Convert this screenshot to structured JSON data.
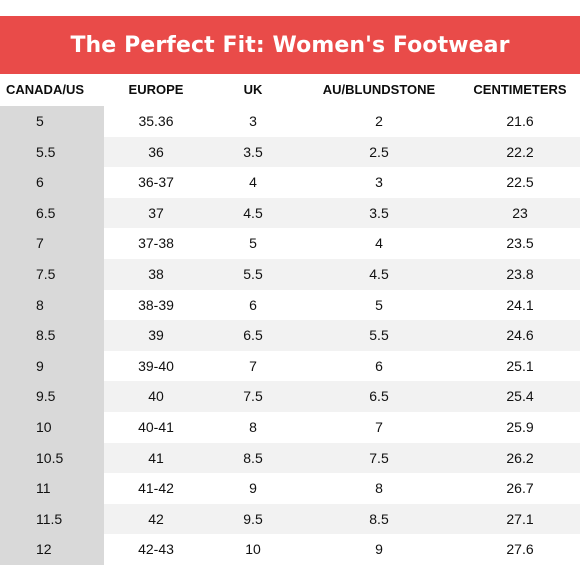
{
  "title": "The Perfect Fit: Women's Footwear",
  "colors": {
    "title_band": "#e94b49",
    "title_text": "#ffffff",
    "first_column_band": "#d9d9d9",
    "alt_row_shade": "#f2f2f2"
  },
  "table": {
    "headers": [
      "CANADA/US",
      "EUROPE",
      "UK",
      "AU/BLUNDSTONE",
      "CENTIMETERS"
    ],
    "rows": [
      [
        "5",
        "35.36",
        "3",
        "2",
        "21.6"
      ],
      [
        "5.5",
        "36",
        "3.5",
        "2.5",
        "22.2"
      ],
      [
        "6",
        "36-37",
        "4",
        "3",
        "22.5"
      ],
      [
        "6.5",
        "37",
        "4.5",
        "3.5",
        "23"
      ],
      [
        "7",
        "37-38",
        "5",
        "4",
        "23.5"
      ],
      [
        "7.5",
        "38",
        "5.5",
        "4.5",
        "23.8"
      ],
      [
        "8",
        "38-39",
        "6",
        "5",
        "24.1"
      ],
      [
        "8.5",
        "39",
        "6.5",
        "5.5",
        "24.6"
      ],
      [
        "9",
        "39-40",
        "7",
        "6",
        "25.1"
      ],
      [
        "9.5",
        "40",
        "7.5",
        "6.5",
        "25.4"
      ],
      [
        "10",
        "40-41",
        "8",
        "7",
        "25.9"
      ],
      [
        "10.5",
        "41",
        "8.5",
        "7.5",
        "26.2"
      ],
      [
        "11",
        "41-42",
        "9",
        "8",
        "26.7"
      ],
      [
        "11.5",
        "42",
        "9.5",
        "8.5",
        "27.1"
      ],
      [
        "12",
        "42-43",
        "10",
        "9",
        "27.6"
      ]
    ]
  }
}
